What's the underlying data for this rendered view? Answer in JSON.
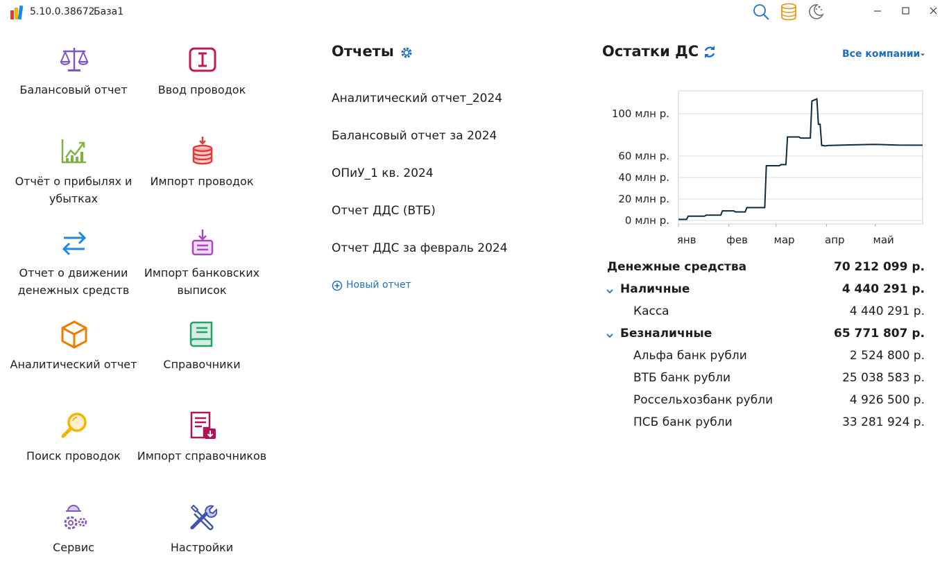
{
  "titlebar": {
    "version": "5.10.0.38672",
    "db_name": "База1",
    "icons": [
      "search-icon",
      "database-icon",
      "night-mode-icon"
    ],
    "window_buttons": [
      "minimize",
      "maximize",
      "close"
    ]
  },
  "tiles": [
    {
      "name": "balance-report",
      "label": "Балансовый отчет",
      "icon": "scales-icon",
      "color": "#7e57c2"
    },
    {
      "name": "entry-input",
      "label": "Ввод проводок",
      "icon": "text-cursor-icon",
      "color": "#c2185b"
    },
    {
      "name": "profit-loss-report",
      "label": "Отчёт о прибылях и убытках",
      "icon": "chart-up-icon",
      "color": "#7cb342"
    },
    {
      "name": "import-entries",
      "label": "Импорт проводок",
      "icon": "database-import-icon",
      "color": "#e53935"
    },
    {
      "name": "cash-flow-report",
      "label": "Отчет о движении денежных средств",
      "icon": "arrows-exchange-icon",
      "color": "#1e88e5"
    },
    {
      "name": "import-bank-statements",
      "label": "Импорт банковских выписок",
      "icon": "tray-import-icon",
      "color": "#ab47bc"
    },
    {
      "name": "analytic-report",
      "label": "Аналитический отчет",
      "icon": "cube-icon",
      "color": "#ef7d00"
    },
    {
      "name": "directories",
      "label": "Справочники",
      "icon": "book-icon",
      "color": "#26a269"
    },
    {
      "name": "search-entries",
      "label": "Поиск проводок",
      "icon": "magnifier-icon",
      "color": "#f4b400"
    },
    {
      "name": "import-directories",
      "label": "Импорт справочников",
      "icon": "document-import-icon",
      "color": "#ad1457"
    },
    {
      "name": "service",
      "label": "Сервис",
      "icon": "worker-gears-icon",
      "color": "#7e57c2"
    },
    {
      "name": "settings",
      "label": "Настройки",
      "icon": "tools-icon",
      "color": "#3f51b5"
    }
  ],
  "reports": {
    "title": "Отчеты",
    "items": [
      "Аналитический отчет_2024",
      "Балансовый отчет за 2024",
      "ОПиУ_1 кв. 2024",
      "Отчет ДДС (ВТБ)",
      "Отчет ДДС за февраль 2024"
    ],
    "new_report": "Новый отчет"
  },
  "cash": {
    "title": "Остатки ДС",
    "company_filter": "Все компании",
    "accent_color": "#1a6fc3",
    "total": {
      "label": "Денежные средства",
      "amount": "70 212 099 р."
    },
    "groups": [
      {
        "label": "Наличные",
        "amount": "4 440 291 р.",
        "items": [
          {
            "label": "Касса",
            "amount": "4 440 291 р."
          }
        ]
      },
      {
        "label": "Безналичные",
        "amount": "65 771 807 р.",
        "items": [
          {
            "label": "Альфа банк рубли",
            "amount": "2 524 800 р."
          },
          {
            "label": "ВТБ банк рубли",
            "amount": "25 038 583 р."
          },
          {
            "label": "Россельхозбанк рубли",
            "amount": "4 926 500 р."
          },
          {
            "label": "ПСБ банк рубли",
            "amount": "33 281 924 р."
          }
        ]
      }
    ]
  },
  "chart_data": {
    "type": "line",
    "title": "",
    "xlabel": "",
    "ylabel": "",
    "x_tick_labels": [
      "янв",
      "фев",
      "мар",
      "апр",
      "май"
    ],
    "y_tick_labels": [
      "0 млн р.",
      "20 млн р.",
      "40 млн р.",
      "60 млн р.",
      "100 млн р."
    ],
    "y_ticks": [
      0,
      20,
      40,
      60,
      100
    ],
    "ylim": [
      0,
      125
    ],
    "x_range_days": [
      0,
      150
    ],
    "grid": true,
    "line_color": "#0f2a3d",
    "series": [
      {
        "x_day": [
          0,
          5,
          6,
          16,
          17,
          26,
          27,
          34,
          35,
          41,
          42,
          53,
          54,
          62,
          63,
          66,
          67,
          74,
          75,
          81,
          82,
          85,
          86,
          87,
          88,
          89,
          90,
          92,
          93,
          105,
          120,
          135,
          150
        ],
        "values": [
          1,
          1,
          4,
          4,
          5,
          5,
          9,
          9,
          8,
          8,
          12,
          12,
          51,
          51,
          52,
          52,
          78,
          78,
          77,
          77,
          112,
          114,
          90,
          90,
          70,
          70,
          69.5,
          70,
          70,
          70.5,
          71,
          70.3,
          70.2
        ]
      }
    ]
  }
}
